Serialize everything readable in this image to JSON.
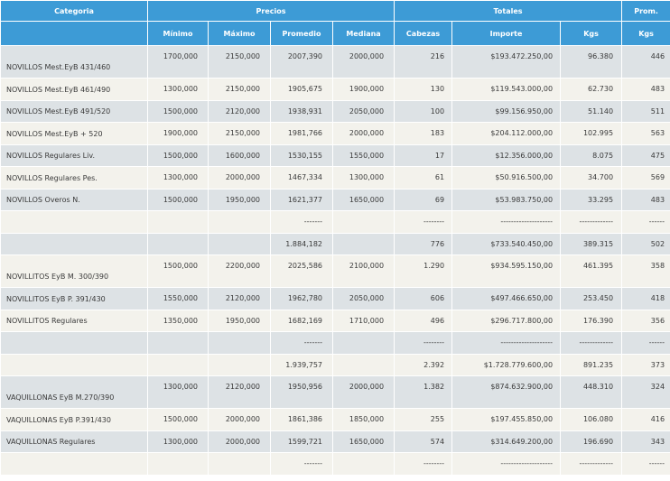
{
  "group_headers": {
    "categoria": "Categoria",
    "precios": "Precios",
    "totales": "Totales",
    "prom": "Prom."
  },
  "sub_headers": {
    "minimo": "Mínimo",
    "maximo": "Máximo",
    "promedio": "Promedio",
    "mediana": "Mediana",
    "cabezas": "Cabezas",
    "importe": "Importe",
    "kgs": "Kgs",
    "prom_kgs": "Kgs"
  },
  "rows": [
    {
      "type": "data",
      "tall": true,
      "cells": [
        "NOVILLOS Mest.EyB 431/460",
        "1700,000",
        "2150,000",
        "2007,390",
        "2000,000",
        "216",
        "$193.472.250,00",
        "96.380",
        "446"
      ]
    },
    {
      "type": "data",
      "cells": [
        "NOVILLOS Mest.EyB 461/490",
        "1300,000",
        "2150,000",
        "1905,675",
        "1900,000",
        "130",
        "$119.543.000,00",
        "62.730",
        "483"
      ]
    },
    {
      "type": "data",
      "cells": [
        "NOVILLOS Mest.EyB 491/520",
        "1500,000",
        "2120,000",
        "1938,931",
        "2050,000",
        "100",
        "$99.156.950,00",
        "51.140",
        "511"
      ]
    },
    {
      "type": "data",
      "cells": [
        "NOVILLOS Mest.EyB + 520",
        "1900,000",
        "2150,000",
        "1981,766",
        "2000,000",
        "183",
        "$204.112.000,00",
        "102.995",
        "563"
      ]
    },
    {
      "type": "data",
      "cells": [
        "NOVILLOS Regulares Liv.",
        "1500,000",
        "1600,000",
        "1530,155",
        "1550,000",
        "17",
        "$12.356.000,00",
        "8.075",
        "475"
      ]
    },
    {
      "type": "data",
      "cells": [
        "NOVILLOS Regulares Pes.",
        "1300,000",
        "2000,000",
        "1467,334",
        "1300,000",
        "61",
        "$50.916.500,00",
        "34.700",
        "569"
      ]
    },
    {
      "type": "data",
      "cells": [
        "NOVILLOS Overos N.",
        "1500,000",
        "1950,000",
        "1621,377",
        "1650,000",
        "69",
        "$53.983.750,00",
        "33.295",
        "483"
      ]
    },
    {
      "type": "sep",
      "cells": [
        "",
        "",
        "",
        "-------",
        "",
        "--------",
        "--------------------",
        "-------------",
        "------"
      ]
    },
    {
      "type": "total",
      "cells": [
        "",
        "",
        "",
        "1.884,182",
        "",
        "776",
        "$733.540.450,00",
        "389.315",
        "502"
      ]
    },
    {
      "type": "data",
      "tall": true,
      "cells": [
        "NOVILLITOS EyB M. 300/390",
        "1500,000",
        "2200,000",
        "2025,586",
        "2100,000",
        "1.290",
        "$934.595.150,00",
        "461.395",
        "358"
      ]
    },
    {
      "type": "data",
      "cells": [
        "NOVILLITOS EyB P. 391/430",
        "1550,000",
        "2120,000",
        "1962,780",
        "2050,000",
        "606",
        "$497.466.650,00",
        "253.450",
        "418"
      ]
    },
    {
      "type": "data",
      "cells": [
        "NOVILLITOS Regulares",
        "1350,000",
        "1950,000",
        "1682,169",
        "1710,000",
        "496",
        "$296.717.800,00",
        "176.390",
        "356"
      ]
    },
    {
      "type": "sep",
      "cells": [
        "",
        "",
        "",
        "-------",
        "",
        "--------",
        "--------------------",
        "-------------",
        "------"
      ]
    },
    {
      "type": "total",
      "cells": [
        "",
        "",
        "",
        "1.939,757",
        "",
        "2.392",
        "$1.728.779.600,00",
        "891.235",
        "373"
      ]
    },
    {
      "type": "data",
      "tall": true,
      "cells": [
        "VAQUILLONAS EyB M.270/390",
        "1300,000",
        "2120,000",
        "1950,956",
        "2000,000",
        "1.382",
        "$874.632.900,00",
        "448.310",
        "324"
      ]
    },
    {
      "type": "data",
      "cells": [
        "VAQUILLONAS EyB P.391/430",
        "1500,000",
        "2000,000",
        "1861,386",
        "1850,000",
        "255",
        "$197.455.850,00",
        "106.080",
        "416"
      ]
    },
    {
      "type": "data",
      "cells": [
        "VAQUILLONAS Regulares",
        "1300,000",
        "2000,000",
        "1599,721",
        "1650,000",
        "574",
        "$314.649.200,00",
        "196.690",
        "343"
      ]
    },
    {
      "type": "sep",
      "cells": [
        "",
        "",
        "",
        "-------",
        "",
        "--------",
        "--------------------",
        "-------------",
        "------"
      ]
    }
  ]
}
